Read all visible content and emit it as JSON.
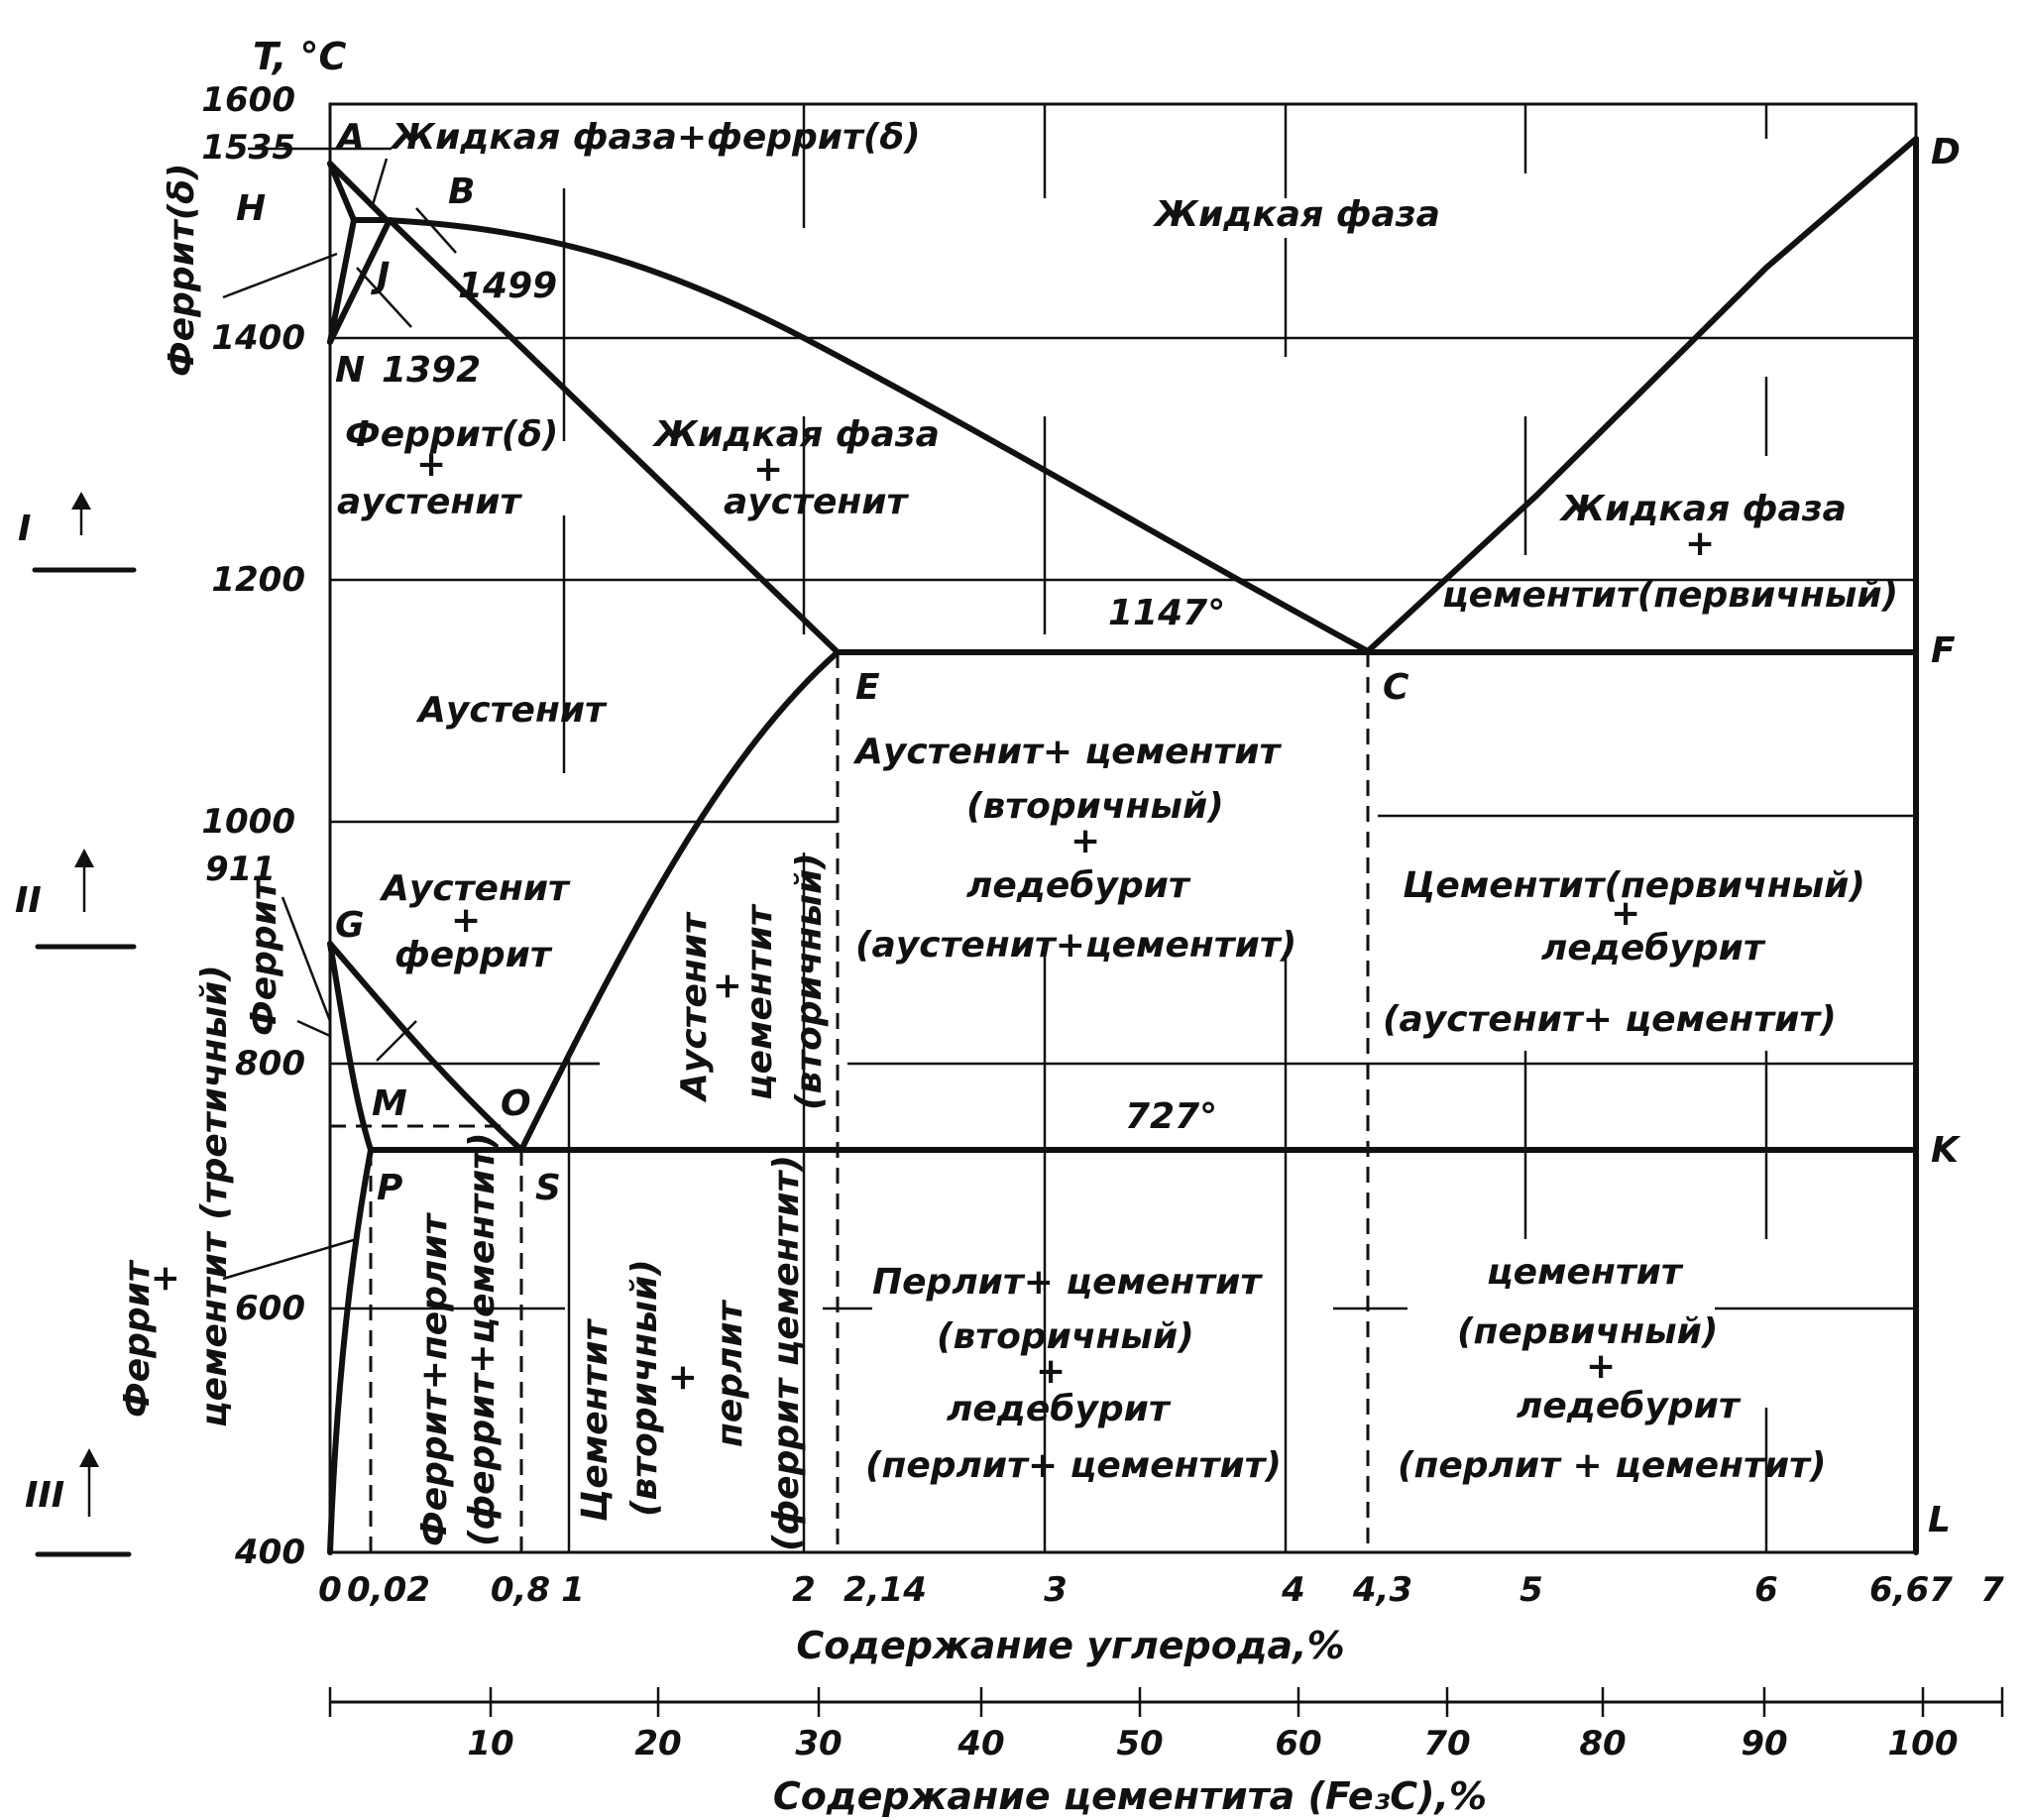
{
  "y_axis": {
    "label": "T, °C",
    "ticks": [
      "1600",
      "1535",
      "1400",
      "1200",
      "1000",
      "911",
      "800",
      "600",
      "400"
    ]
  },
  "x_axis": {
    "label": "Содержание углерода,%",
    "ticks": [
      "0",
      "0,02",
      "0,8",
      "1",
      "2",
      "2,14",
      "3",
      "4",
      "4,3",
      "5",
      "6",
      "6,67",
      "7"
    ]
  },
  "x2_axis": {
    "label": "Содержание цементита (Fe₃C),%",
    "ticks": [
      "10",
      "20",
      "30",
      "40",
      "50",
      "60",
      "70",
      "80",
      "90",
      "100"
    ]
  },
  "points": {
    "A": "A",
    "B": "B",
    "H": "Н",
    "J": "J",
    "N": "N",
    "D": "D",
    "E": "E",
    "C": "C",
    "F": "F",
    "G": "G",
    "M": "M",
    "O": "O",
    "P": "P",
    "S": "S",
    "K": "K",
    "L": "L"
  },
  "temps": {
    "t1499": "1499",
    "t1392": "1392",
    "t1147": "1147°",
    "t727": "727°"
  },
  "side_marks": {
    "I": "I",
    "II": "II",
    "III": "III"
  },
  "regions": {
    "liquid_delta": "Жидкая фаза+феррит(δ)",
    "liquid": "Жидкая фаза",
    "delta_label": "Феррит(δ)",
    "delta_aust_1": "Феррит(δ)",
    "delta_aust_plus": "+",
    "delta_aust_2": "аустенит",
    "liquid_aust_1": "Жидкая фаза",
    "liquid_aust_plus": "+",
    "liquid_aust_2": "аустенит",
    "liquid_cem_1": "Жидкая фаза",
    "liquid_cem_plus": "+",
    "liquid_cem_2": "цементит(первичный)",
    "austenite": "Аустенит",
    "aust_cem_led_1": "Аустенит+ цементит",
    "aust_cem_led_2": "(вторичный)",
    "aust_cem_led_plus": "+",
    "aust_cem_led_3": "ледебурит",
    "aust_cem_led_4": "(аустенит+цементит)",
    "aust_ferr_1": "Аустенит",
    "aust_ferr_plus": "+",
    "aust_ferr_2": "феррит",
    "ferrite_label": "Феррит",
    "aust_cem_v_1": "Аустенит",
    "aust_cem_v_plus": "+",
    "aust_cem_v_2": "цементит",
    "aust_cem_v_3": "(вторичный)",
    "cem_led_1": "Цементит(первичный)",
    "cem_led_plus": "+",
    "cem_led_2": "ледебурит",
    "cem_led_3": "(аустенит+ цементит)",
    "ferr_cem3_1": "Феррит",
    "ferr_cem3_plus": "+",
    "ferr_cem3_2": "цементит (третичный)",
    "ferr_perl_1": "Феррит+перлит",
    "ferr_perl_2": "(феррит+цементит)",
    "cem_perl_1": "Цементит",
    "cem_perl_2": "(вторичный)",
    "cem_perl_plus": "+",
    "cem_perl_3": "перлит",
    "cem_perl_4": "(феррит цементит)",
    "perl_cem_led_1": "Перлит+ цементит",
    "perl_cem_led_2": "(вторичный)",
    "perl_cem_led_plus": "+",
    "perl_cem_led_3": "ледебурит",
    "perl_cem_led_4": "(перлит+ цементит)",
    "cem_led_low_1": "цементит",
    "cem_led_low_2": "(первичный)",
    "cem_led_low_plus": "+",
    "cem_led_low_3": "ледебурит",
    "cem_led_low_4": "(перлит + цементит)"
  }
}
